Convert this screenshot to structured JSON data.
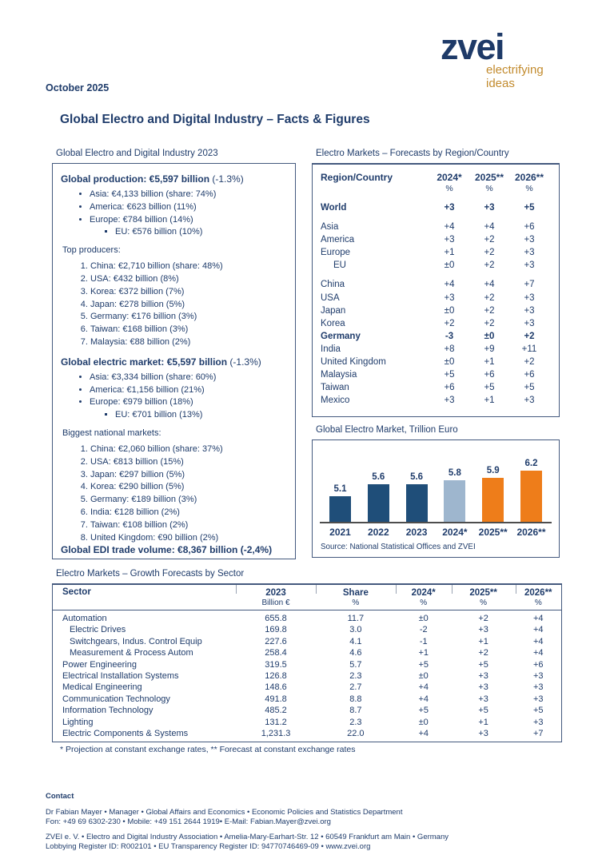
{
  "header": {
    "date": "October 2025",
    "title": "Global Electro and Digital Industry – Facts & Figures",
    "logo": {
      "brand": "zvei",
      "tagline_line1": "electrifying",
      "tagline_line2": "ideas"
    }
  },
  "colors": {
    "text_navy": "#1F3C6B",
    "bar_navy": "#1F4E79",
    "bar_lightblue": "#9EB6CE",
    "bar_orange": "#EE7D1A",
    "logo_gold": "#C28B2E"
  },
  "left_panel": {
    "title": "Global Electro and Digital Industry 2023",
    "production": {
      "heading_bold": "Global production: €5,597 billion",
      "heading_suffix": " (-1.3%)",
      "bullets": [
        "Asia: €4,133 billion (share: 74%)",
        "America: €623 billion (11%)",
        "Europe: €784 billion (14%)"
      ],
      "sub_bullets": [
        "EU: €576 billion (10%)"
      ]
    },
    "top_producers": {
      "label": "Top producers:",
      "items": [
        "China: €2,710 billion (share: 48%)",
        "USA: €432 billion (8%)",
        "Korea: €372 billion (7%)",
        "Japan: €278 billion (5%)",
        "Germany: €176 billion (3%)",
        "Taiwan: €168 billion (3%)",
        "Malaysia: €88 billion (2%)"
      ]
    },
    "electric_market": {
      "heading_bold": "Global electric market: €5,597 billion",
      "heading_suffix": " (-1.3%)",
      "bullets": [
        "Asia: €3,334 billion (share: 60%)",
        "America: €1,156 billion (21%)",
        "Europe: €979 billion (18%)"
      ],
      "sub_bullets": [
        "EU: €701 billion (13%)"
      ]
    },
    "biggest_markets": {
      "label": "Biggest national markets:",
      "items": [
        "China: €2,060 billion (share: 37%)",
        "USA: €813 billion (15%)",
        "Japan: €297 billion (5%)",
        "Korea: €290 billion (5%)",
        "Germany: €189 billion (3%)",
        "India: €128 billion (2%)",
        "Taiwan: €108 billion (2%)",
        "United Kingdom: €90 billion (2%)"
      ]
    },
    "edi_trade": "Global EDI trade volume: €8,367 billion (-2,4%)"
  },
  "region_table": {
    "title": "Electro Markets – Forecasts by Region/Country",
    "header": "Region/Country",
    "years": [
      "2024*",
      "2025**",
      "2026**"
    ],
    "unit": "%",
    "rows": [
      {
        "name": "World",
        "values": [
          "+3",
          "+3",
          "+5"
        ],
        "bold": true
      },
      {
        "name": "Asia",
        "values": [
          "+4",
          "+4",
          "+6"
        ],
        "gap": true
      },
      {
        "name": "America",
        "values": [
          "+3",
          "+2",
          "+3"
        ]
      },
      {
        "name": "Europe",
        "values": [
          "+1",
          "+2",
          "+3"
        ]
      },
      {
        "name": "EU",
        "values": [
          "±0",
          "+2",
          "+3"
        ],
        "indent": true
      },
      {
        "name": "China",
        "values": [
          "+4",
          "+4",
          "+7"
        ],
        "gap": true
      },
      {
        "name": "USA",
        "values": [
          "+3",
          "+2",
          "+3"
        ]
      },
      {
        "name": "Japan",
        "values": [
          "±0",
          "+2",
          "+3"
        ]
      },
      {
        "name": "Korea",
        "values": [
          "+2",
          "+2",
          "+3"
        ]
      },
      {
        "name": "Germany",
        "values": [
          "-3",
          "±0",
          "+2"
        ],
        "bold": true
      },
      {
        "name": "India",
        "values": [
          "+8",
          "+9",
          "+11"
        ]
      },
      {
        "name": "United Kingdom",
        "values": [
          "±0",
          "+1",
          "+2"
        ]
      },
      {
        "name": "Malaysia",
        "values": [
          "+5",
          "+6",
          "+6"
        ]
      },
      {
        "name": "Taiwan",
        "values": [
          "+6",
          "+5",
          "+5"
        ]
      },
      {
        "name": "Mexico",
        "values": [
          "+3",
          "+1",
          "+3"
        ]
      }
    ]
  },
  "chart_data": {
    "type": "bar",
    "title": "Global Electro Market, Trillion Euro",
    "categories": [
      "2021",
      "2022",
      "2023",
      "2024*",
      "2025**",
      "2026**"
    ],
    "values": [
      5.1,
      5.6,
      5.6,
      5.8,
      5.9,
      6.2
    ],
    "colors": [
      "#1F4E79",
      "#1F4E79",
      "#1F4E79",
      "#9EB6CE",
      "#EE7D1A",
      "#EE7D1A"
    ],
    "baseline": 4.0,
    "ylim": [
      4.0,
      7.3
    ],
    "grid": false,
    "legend": "none",
    "data_labels": true,
    "source": "Source: National Statistical Offices and ZVEI"
  },
  "sector_table": {
    "title": "Electro Markets – Growth Forecasts by Sector",
    "headers": {
      "sector": "Sector",
      "cols": [
        {
          "label": "2023",
          "unit": "Billion €"
        },
        {
          "label": "Share",
          "unit": "%"
        },
        {
          "label": "2024*",
          "unit": "%"
        },
        {
          "label": "2025**",
          "unit": "%"
        },
        {
          "label": "2026**",
          "unit": "%"
        }
      ]
    },
    "rows": [
      {
        "name": "Automation",
        "values": [
          "655.8",
          "11.7",
          "±0",
          "+2",
          "+4"
        ]
      },
      {
        "name": "Electric Drives",
        "values": [
          "169.8",
          "3.0",
          "-2",
          "+3",
          "+4"
        ],
        "indent": true
      },
      {
        "name": "Switchgears, Indus. Control Equip",
        "values": [
          "227.6",
          "4.1",
          "-1",
          "+1",
          "+4"
        ],
        "indent": true
      },
      {
        "name": "Measurement & Process Autom",
        "values": [
          "258.4",
          "4.6",
          "+1",
          "+2",
          "+4"
        ],
        "indent": true
      },
      {
        "name": "Power Engineering",
        "values": [
          "319.5",
          "5.7",
          "+5",
          "+5",
          "+6"
        ]
      },
      {
        "name": "Electrical Installation Systems",
        "values": [
          "126.8",
          "2.3",
          "±0",
          "+3",
          "+3"
        ]
      },
      {
        "name": "Medical Engineering",
        "values": [
          "148.6",
          "2.7",
          "+4",
          "+3",
          "+3"
        ]
      },
      {
        "name": "Communication Technology",
        "values": [
          "491.8",
          "8.8",
          "+4",
          "+3",
          "+3"
        ]
      },
      {
        "name": "Information Technology",
        "values": [
          "485.2",
          "8.7",
          "+5",
          "+5",
          "+5"
        ]
      },
      {
        "name": "Lighting",
        "values": [
          "131.2",
          "2.3",
          "±0",
          "+1",
          "+3"
        ]
      },
      {
        "name": "Electric Components & Systems",
        "values": [
          "1,231.3",
          "22.0",
          "+4",
          "+3",
          "+7"
        ]
      }
    ],
    "footnote": "* Projection at constant exchange rates, ** Forecast at constant exchange rates"
  },
  "contact": {
    "heading": "Contact",
    "person_line": "Dr Fabian Mayer • Manager • Global Affairs and Economics • Economic Policies and Statistics Department",
    "phone_line": "Fon: +49 69 6302-230  • Mobile: +49 151 2644 1919• E-Mail: Fabian.Mayer@zvei.org",
    "org_line": "ZVEI e. V. • Electro and Digital Industry Association • Amelia-Mary-Earhart-Str. 12 • 60549 Frankfurt am Main • Germany",
    "register_line": "Lobbying Register ID: R002101 • EU Transparency Register ID: 94770746469-09 • www.zvei.org"
  }
}
